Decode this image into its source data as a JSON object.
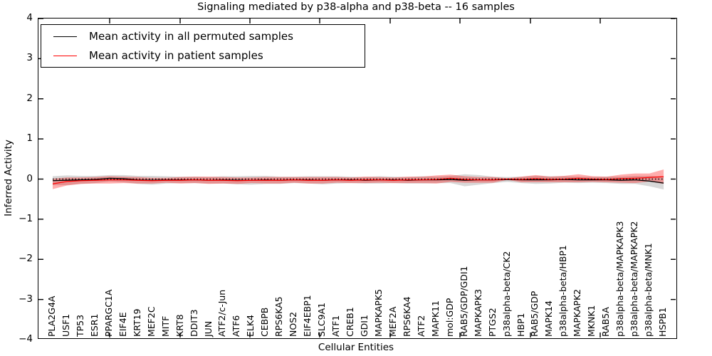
{
  "chart_data": {
    "type": "line",
    "title": "Signaling mediated by p38-alpha and p38-beta -- 16 samples",
    "xlabel": "Cellular Entities",
    "ylabel": "Inferred Activity",
    "ylim": [
      -4,
      4
    ],
    "yticks": [
      4,
      3,
      2,
      1,
      0,
      -1,
      -2,
      -3,
      -4
    ],
    "grid": false,
    "legend_position": "upper left",
    "zero_line": {
      "style": "dotted",
      "color": "#000000",
      "value": 0
    },
    "categories": [
      "PLA2G4A",
      "USF1",
      "TP53",
      "ESR1",
      "PPARGC1A",
      "EIF4E",
      "KRT19",
      "MEF2C",
      "MITF",
      "KRT8",
      "DDIT3",
      "JUN",
      "ATF2/c-Jun",
      "ATF6",
      "ELK4",
      "CEBPB",
      "RPS6KA5",
      "NOS2",
      "EIF4EBP1",
      "SLC9A1",
      "ATF1",
      "CREB1",
      "GDI1",
      "MAPKAPK5",
      "MEF2A",
      "RPS6KA4",
      "ATF2",
      "MAPK11",
      "mol:GDP",
      "RAB5/GDP/GDI1",
      "MAPKAPK3",
      "PTGS2",
      "p38alpha-beta/CK2",
      "HBP1",
      "RAB5/GDP",
      "MAPK14",
      "p38alpha-beta/HBP1",
      "MAPKAPK2",
      "MKNK1",
      "RAB5A",
      "p38alpha-beta/MAPKAPK3",
      "p38alpha-beta/MAPKAPK2",
      "p38alpha-beta/MNK1",
      "HSPB1"
    ],
    "series": [
      {
        "name": "Mean activity in all permuted samples",
        "color": "#000000",
        "band_color": "rgba(125,125,125,0.30)",
        "values": [
          -0.04,
          -0.03,
          -0.02,
          -0.01,
          0.02,
          0.01,
          -0.02,
          -0.03,
          -0.02,
          -0.02,
          -0.02,
          -0.03,
          -0.02,
          -0.03,
          -0.03,
          -0.02,
          -0.03,
          -0.02,
          -0.02,
          -0.03,
          -0.02,
          -0.02,
          -0.03,
          -0.02,
          -0.02,
          -0.03,
          -0.02,
          -0.02,
          -0.01,
          -0.03,
          -0.02,
          -0.02,
          -0.01,
          -0.02,
          -0.02,
          -0.02,
          -0.01,
          -0.02,
          -0.02,
          -0.02,
          -0.03,
          -0.02,
          -0.05,
          -0.1
        ],
        "band_halfwidth": [
          0.11,
          0.12,
          0.1,
          0.09,
          0.08,
          0.09,
          0.1,
          0.11,
          0.09,
          0.08,
          0.08,
          0.08,
          0.09,
          0.1,
          0.11,
          0.1,
          0.09,
          0.08,
          0.09,
          0.1,
          0.09,
          0.08,
          0.08,
          0.09,
          0.08,
          0.08,
          0.09,
          0.08,
          0.09,
          0.15,
          0.12,
          0.08,
          0.06,
          0.08,
          0.1,
          0.09,
          0.08,
          0.08,
          0.07,
          0.08,
          0.09,
          0.1,
          0.13,
          0.16
        ]
      },
      {
        "name": "Mean activity in patient samples",
        "color": "#ff0000",
        "band_color": "rgba(255,0,0,0.32)",
        "values": [
          -0.12,
          -0.06,
          -0.04,
          -0.03,
          -0.02,
          -0.02,
          -0.03,
          -0.04,
          -0.03,
          -0.03,
          -0.02,
          -0.03,
          -0.03,
          -0.04,
          -0.03,
          -0.03,
          -0.03,
          -0.02,
          -0.03,
          -0.03,
          -0.02,
          -0.03,
          -0.02,
          -0.02,
          -0.03,
          -0.02,
          -0.02,
          -0.01,
          0.02,
          -0.01,
          -0.02,
          -0.02,
          0.0,
          -0.01,
          0.01,
          -0.01,
          0.0,
          0.02,
          0.0,
          -0.01,
          0.01,
          0.02,
          0.04,
          0.06
        ],
        "band_halfwidth": [
          0.13,
          0.1,
          0.08,
          0.08,
          0.09,
          0.08,
          0.08,
          0.07,
          0.06,
          0.08,
          0.08,
          0.09,
          0.08,
          0.08,
          0.07,
          0.08,
          0.08,
          0.07,
          0.08,
          0.08,
          0.07,
          0.07,
          0.08,
          0.07,
          0.07,
          0.08,
          0.08,
          0.1,
          0.09,
          0.08,
          0.07,
          0.07,
          0.02,
          0.07,
          0.09,
          0.07,
          0.08,
          0.1,
          0.07,
          0.07,
          0.1,
          0.12,
          0.1,
          0.18
        ]
      }
    ],
    "top_axis_tick_x": [
      153,
      252,
      350,
      448,
      547,
      645,
      744,
      842
    ]
  }
}
